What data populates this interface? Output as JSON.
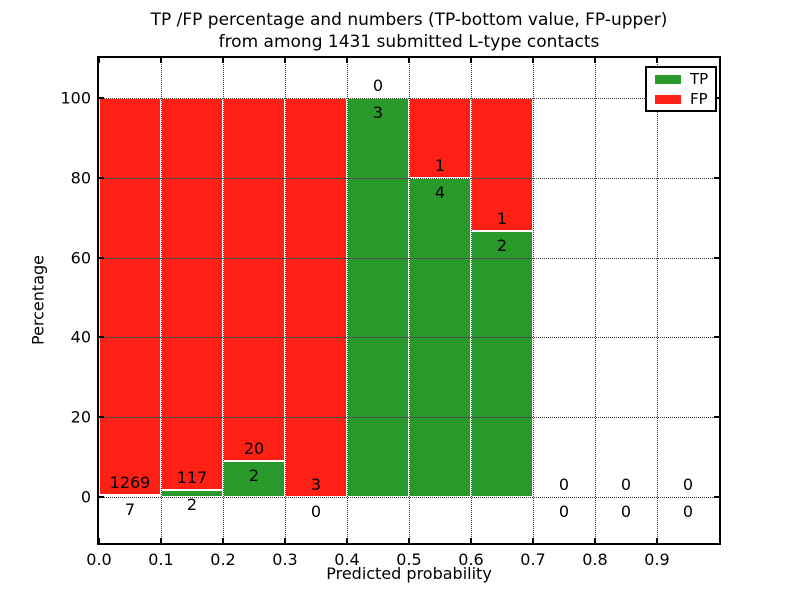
{
  "figure": {
    "title_line1": "TP /FP percentage and numbers (TP-bottom value, FP-upper)",
    "title_line2": "from among 1431 submitted L-type contacts",
    "background": "#ffffff"
  },
  "chart_data": {
    "type": "bar",
    "stacked": true,
    "normalized_to_percent": true,
    "title": "TP /FP percentage and numbers (TP-bottom value, FP-upper) from among 1431 submitted L-type contacts",
    "xlabel": "Predicted probability",
    "ylabel": "Percentage",
    "total_contacts": 1431,
    "xlim": [
      0.0,
      1.0
    ],
    "ylim": [
      -11.5,
      110
    ],
    "bin_width": 0.1,
    "grid": "dotted",
    "categories": [
      "0.0-0.1",
      "0.1-0.2",
      "0.2-0.3",
      "0.3-0.4",
      "0.4-0.5",
      "0.5-0.6",
      "0.6-0.7",
      "0.7-0.8",
      "0.8-0.9",
      "0.9-1.0"
    ],
    "x_tick_values": [
      0.0,
      0.1,
      0.2,
      0.3,
      0.4,
      0.5,
      0.6,
      0.7,
      0.8,
      0.9
    ],
    "x_tick_labels": [
      "0.0",
      "0.1",
      "0.2",
      "0.3",
      "0.4",
      "0.5",
      "0.6",
      "0.7",
      "0.8",
      "0.9"
    ],
    "y_tick_values": [
      0,
      20,
      40,
      60,
      80,
      100
    ],
    "y_tick_labels": [
      "0",
      "20",
      "40",
      "60",
      "80",
      "100"
    ],
    "series": [
      {
        "name": "TP",
        "color": "#2a992c",
        "counts": [
          7,
          2,
          2,
          0,
          3,
          4,
          2,
          0,
          0,
          0
        ]
      },
      {
        "name": "FP",
        "color": "#ff2015",
        "counts": [
          1269,
          117,
          20,
          3,
          0,
          1,
          1,
          0,
          0,
          0
        ]
      }
    ],
    "tp_percent_of_bin": [
      0.55,
      1.68,
      9.09,
      0.0,
      100.0,
      80.0,
      66.67,
      null,
      null,
      null
    ],
    "annotation_rule": "FP count printed above the TP/FP boundary, TP count printed below it",
    "legend": {
      "position": "upper right",
      "entries": [
        {
          "label": "TP",
          "color": "#2a992c"
        },
        {
          "label": "FP",
          "color": "#ff2015"
        }
      ]
    },
    "bar_edge_color": "#ffffff",
    "axis_color": "#000000",
    "grid_color": "#3a3a3a"
  }
}
